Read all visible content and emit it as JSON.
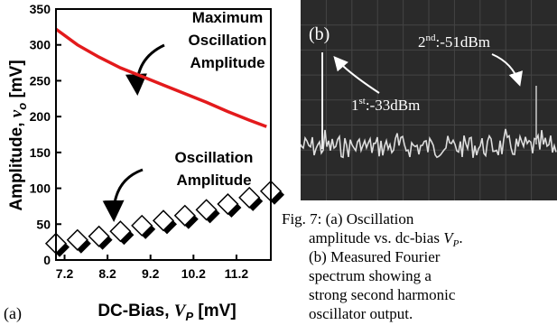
{
  "chart_data": {
    "type": "line",
    "panel_label": "(a)",
    "ylabel": [
      "Amplitude, ",
      "v",
      "o",
      " [mV]"
    ],
    "xlabel": [
      "DC-Bias, ",
      "V",
      "P",
      " [mV]"
    ],
    "xlim": [
      7,
      12
    ],
    "ylim": [
      0,
      350
    ],
    "xticks": [
      7.2,
      8.2,
      9.2,
      10.2,
      11.2
    ],
    "yticks": [
      0,
      50,
      100,
      150,
      200,
      250,
      300,
      350
    ],
    "series": [
      {
        "type": "line",
        "color": "#e31a1c",
        "x": [
          7.0,
          7.5,
          8.0,
          8.5,
          9.0,
          9.5,
          10.0,
          10.5,
          11.0,
          11.5,
          11.9
        ],
        "values": [
          322,
          300,
          283,
          268,
          256,
          244,
          232,
          220,
          207,
          195,
          186
        ]
      },
      {
        "type": "scatter",
        "color": "#ffffff",
        "x": [
          7.0,
          7.5,
          8.0,
          8.5,
          9.0,
          9.5,
          10.0,
          10.5,
          11.0,
          11.5,
          12.0
        ],
        "values": [
          23,
          28,
          33,
          40,
          48,
          55,
          62,
          70,
          78,
          87,
          96
        ]
      }
    ],
    "annotations": [
      [
        "Maximum",
        "Oscillation",
        "Amplitude"
      ],
      [
        "Oscillation",
        "Amplitude"
      ]
    ]
  },
  "spectrum": {
    "panel_label": "(b)",
    "peaks": [
      [
        "1",
        "st",
        ":-33dBm"
      ],
      [
        "2",
        "nd",
        ":-51dBm"
      ]
    ]
  },
  "caption": {
    "line1": "Fig. 7:  (a) Oscillation",
    "line2": [
      "amplitude vs. dc-bias ",
      "V",
      "P",
      "."
    ],
    "line3": "(b) Measured Fourier",
    "line4": "spectrum showing a",
    "line5": "strong second harmonic",
    "line6": "oscillator output."
  }
}
